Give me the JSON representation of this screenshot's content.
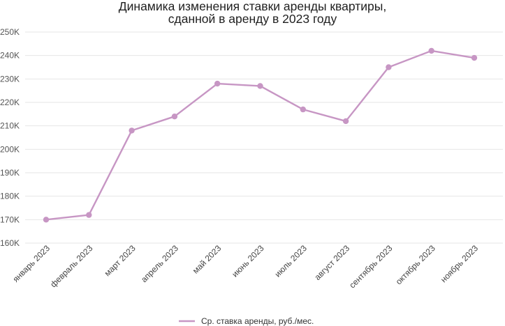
{
  "chart_data": {
    "type": "line",
    "title": [
      "Динамика изменения ставки аренды квартиры,",
      "сданной в аренду в 2023 году"
    ],
    "xlabel": "",
    "ylabel": "",
    "categories": [
      "январь 2023",
      "февраль 2023",
      "март 2023",
      "апрель 2023",
      "май 2023",
      "июнь 2023",
      "июль 2023",
      "август 2023",
      "сентябрь 2023",
      "октябрь 2023",
      "ноябрь 2023"
    ],
    "series": [
      {
        "name": "Ср. ставка аренды, руб./мес.",
        "values": [
          170000,
          172000,
          208000,
          214000,
          228000,
          227000,
          217000,
          212000,
          235000,
          242000,
          239000
        ],
        "color": "#c796c4"
      }
    ],
    "ylim": [
      160000,
      250000
    ],
    "y_ticks": [
      {
        "value": 250000,
        "label": "250K"
      },
      {
        "value": 240000,
        "label": "240K"
      },
      {
        "value": 230000,
        "label": "230K"
      },
      {
        "value": 220000,
        "label": "220K"
      },
      {
        "value": 210000,
        "label": "210K"
      },
      {
        "value": 200000,
        "label": "200K"
      },
      {
        "value": 190000,
        "label": "190K"
      },
      {
        "value": 180000,
        "label": "180K"
      },
      {
        "value": 170000,
        "label": "170K"
      },
      {
        "value": 160000,
        "label": "160K"
      }
    ],
    "grid": true,
    "legend_position": "bottom",
    "gridline_color": "#e6e6e6"
  }
}
